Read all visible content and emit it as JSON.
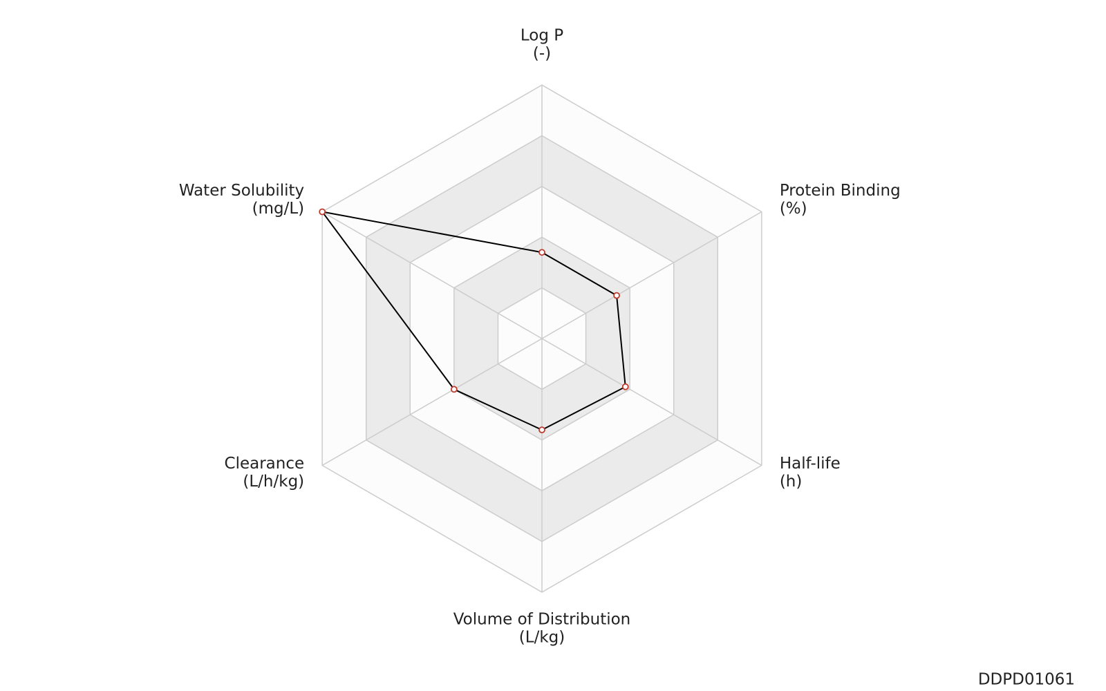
{
  "chart_data": {
    "type": "radar",
    "categories": [
      "Log P",
      "Protein Binding",
      "Half-life",
      "Volume of Distribution",
      "Clearance",
      "Water Solubility"
    ],
    "units": [
      "(-)",
      "(%)",
      "(h)",
      "(L/kg)",
      "(L/h/kg)",
      "(mg/L)"
    ],
    "series": [
      {
        "color": "#000000",
        "marker_color": "#c0392b",
        "values": [
          1.7,
          1.7,
          1.9,
          1.8,
          2.0,
          5.0
        ]
      }
    ],
    "rlim": [
      0,
      5
    ],
    "rticks": [
      0,
      1,
      2,
      3,
      4,
      5
    ],
    "grid": true
  },
  "footer_id": "DDPD01061"
}
